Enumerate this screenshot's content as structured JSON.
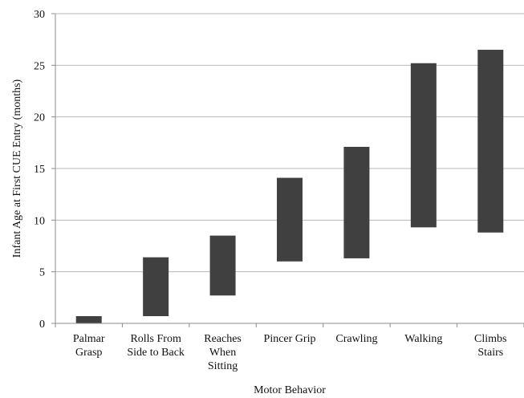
{
  "chart_data": {
    "type": "bar",
    "subtype": "floating-range",
    "categories": [
      [
        "Palmar",
        "Grasp"
      ],
      [
        "Rolls From",
        "Side to Back"
      ],
      [
        "Reaches",
        "When",
        "Sitting"
      ],
      [
        "Pincer Grip"
      ],
      [
        "Crawling"
      ],
      [
        "Walking"
      ],
      [
        "Climbs",
        "Stairs"
      ]
    ],
    "ranges": [
      [
        0.0,
        0.7
      ],
      [
        0.7,
        6.4
      ],
      [
        2.7,
        8.5
      ],
      [
        6.0,
        14.1
      ],
      [
        6.3,
        17.1
      ],
      [
        9.3,
        25.2
      ],
      [
        8.8,
        26.5
      ]
    ],
    "xlabel": "Motor Behavior",
    "ylabel": "Infant Age at First CUE Entry (months)",
    "ylim": [
      0,
      30
    ],
    "yticks": [
      0,
      5,
      10,
      15,
      20,
      25,
      30
    ],
    "grid": true,
    "legend": "none",
    "bar_color": "#404040"
  }
}
